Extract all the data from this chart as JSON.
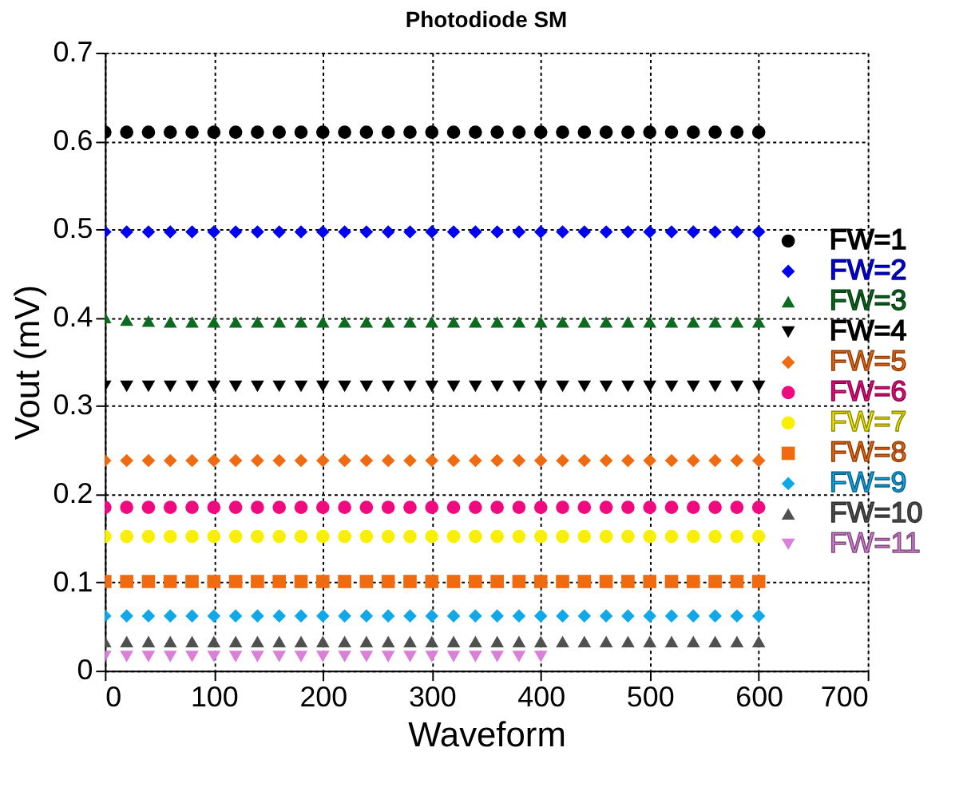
{
  "chart_data": {
    "type": "scatter",
    "title": "Photodiode SM",
    "xlabel": "Waveform",
    "ylabel": "Vout (mV)",
    "x": [
      0,
      20,
      40,
      60,
      80,
      100,
      120,
      140,
      160,
      180,
      200,
      220,
      240,
      260,
      280,
      300,
      320,
      340,
      360,
      380,
      400,
      420,
      440,
      460,
      480,
      500,
      520,
      540,
      560,
      580,
      600
    ],
    "xlim": [
      0,
      700
    ],
    "xticks": [
      0,
      100,
      200,
      300,
      400,
      500,
      600,
      700
    ],
    "ylim": [
      0,
      0.7
    ],
    "yticks": [
      0,
      0.1,
      0.2,
      0.3,
      0.4,
      0.5,
      0.6,
      0.7
    ],
    "grid": true,
    "legend": "right",
    "series": [
      {
        "name": "FW=1",
        "color": "#000000",
        "marker": "circle",
        "values": [
          0.61,
          0.61,
          0.61,
          0.61,
          0.61,
          0.61,
          0.61,
          0.61,
          0.61,
          0.61,
          0.61,
          0.61,
          0.61,
          0.61,
          0.61,
          0.61,
          0.61,
          0.61,
          0.61,
          0.61,
          0.61,
          0.61,
          0.61,
          0.61,
          0.61,
          0.61,
          0.61,
          0.61,
          0.61,
          0.61,
          0.61
        ]
      },
      {
        "name": "FW=2",
        "color": "#0000ee",
        "marker": "diamond",
        "values": [
          0.497,
          0.497,
          0.497,
          0.497,
          0.497,
          0.497,
          0.497,
          0.497,
          0.497,
          0.497,
          0.497,
          0.497,
          0.497,
          0.497,
          0.497,
          0.497,
          0.497,
          0.497,
          0.497,
          0.497,
          0.497,
          0.497,
          0.497,
          0.497,
          0.497,
          0.497,
          0.497,
          0.497,
          0.497,
          0.497,
          0.497
        ]
      },
      {
        "name": "FW=3",
        "color": "#0b6b1e",
        "marker": "triangle",
        "values": [
          0.4,
          0.397,
          0.396,
          0.395,
          0.395,
          0.395,
          0.395,
          0.395,
          0.395,
          0.395,
          0.395,
          0.395,
          0.395,
          0.395,
          0.395,
          0.395,
          0.395,
          0.395,
          0.395,
          0.395,
          0.395,
          0.395,
          0.395,
          0.395,
          0.395,
          0.395,
          0.395,
          0.395,
          0.395,
          0.395,
          0.395
        ]
      },
      {
        "name": "FW=4",
        "color": "#000000",
        "marker": "triangle-down",
        "values": [
          0.322,
          0.322,
          0.322,
          0.322,
          0.322,
          0.322,
          0.322,
          0.322,
          0.322,
          0.322,
          0.322,
          0.322,
          0.322,
          0.322,
          0.322,
          0.322,
          0.322,
          0.322,
          0.322,
          0.322,
          0.322,
          0.322,
          0.322,
          0.322,
          0.322,
          0.322,
          0.322,
          0.322,
          0.322,
          0.322,
          0.322
        ]
      },
      {
        "name": "FW=5",
        "color": "#f06a10",
        "marker": "diamond",
        "values": [
          0.238,
          0.238,
          0.238,
          0.238,
          0.238,
          0.238,
          0.238,
          0.238,
          0.238,
          0.238,
          0.238,
          0.238,
          0.238,
          0.238,
          0.238,
          0.238,
          0.238,
          0.238,
          0.238,
          0.238,
          0.238,
          0.238,
          0.238,
          0.238,
          0.238,
          0.238,
          0.238,
          0.238,
          0.238,
          0.238,
          0.238
        ]
      },
      {
        "name": "FW=6",
        "color": "#f00a80",
        "marker": "circle",
        "values": [
          0.185,
          0.185,
          0.185,
          0.185,
          0.185,
          0.185,
          0.185,
          0.185,
          0.185,
          0.185,
          0.185,
          0.185,
          0.185,
          0.185,
          0.185,
          0.185,
          0.185,
          0.185,
          0.185,
          0.185,
          0.185,
          0.185,
          0.185,
          0.185,
          0.185,
          0.185,
          0.185,
          0.185,
          0.185,
          0.185,
          0.185
        ]
      },
      {
        "name": "FW=7",
        "color": "#f8f000",
        "marker": "circle",
        "values": [
          0.152,
          0.152,
          0.152,
          0.152,
          0.152,
          0.152,
          0.152,
          0.152,
          0.152,
          0.152,
          0.152,
          0.152,
          0.152,
          0.152,
          0.152,
          0.152,
          0.152,
          0.152,
          0.152,
          0.152,
          0.152,
          0.152,
          0.152,
          0.152,
          0.152,
          0.152,
          0.152,
          0.152,
          0.152,
          0.152,
          0.152
        ]
      },
      {
        "name": "FW=8",
        "color": "#f06a10",
        "marker": "square",
        "values": [
          0.101,
          0.101,
          0.101,
          0.101,
          0.101,
          0.101,
          0.101,
          0.101,
          0.101,
          0.101,
          0.101,
          0.101,
          0.101,
          0.101,
          0.101,
          0.101,
          0.101,
          0.101,
          0.101,
          0.101,
          0.101,
          0.101,
          0.101,
          0.101,
          0.101,
          0.101,
          0.101,
          0.101,
          0.101,
          0.101,
          0.101
        ]
      },
      {
        "name": "FW=9",
        "color": "#10a8e8",
        "marker": "diamond",
        "values": [
          0.062,
          0.062,
          0.062,
          0.062,
          0.062,
          0.062,
          0.062,
          0.062,
          0.062,
          0.062,
          0.062,
          0.062,
          0.062,
          0.062,
          0.062,
          0.062,
          0.062,
          0.062,
          0.062,
          0.062,
          0.062,
          0.062,
          0.062,
          0.062,
          0.062,
          0.062,
          0.062,
          0.062,
          0.062,
          0.062,
          0.062
        ]
      },
      {
        "name": "FW=10",
        "color": "#505050",
        "marker": "triangle",
        "values": [
          0.033,
          0.033,
          0.033,
          0.033,
          0.033,
          0.033,
          0.033,
          0.033,
          0.033,
          0.033,
          0.033,
          0.033,
          0.033,
          0.033,
          0.033,
          0.033,
          0.033,
          0.033,
          0.033,
          0.033,
          0.033,
          0.033,
          0.033,
          0.033,
          0.033,
          0.033,
          0.033,
          0.033,
          0.033,
          0.033,
          0.033
        ]
      },
      {
        "name": "FW=11",
        "color": "#da80d8",
        "marker": "triangle-down",
        "x": [
          0,
          20,
          40,
          60,
          80,
          100,
          120,
          140,
          160,
          180,
          200,
          220,
          240,
          260,
          280,
          300,
          320,
          340,
          360,
          380,
          400
        ],
        "values": [
          0.016,
          0.016,
          0.016,
          0.016,
          0.016,
          0.016,
          0.016,
          0.016,
          0.016,
          0.016,
          0.016,
          0.016,
          0.016,
          0.016,
          0.016,
          0.016,
          0.016,
          0.016,
          0.016,
          0.016,
          0.016
        ]
      }
    ]
  }
}
